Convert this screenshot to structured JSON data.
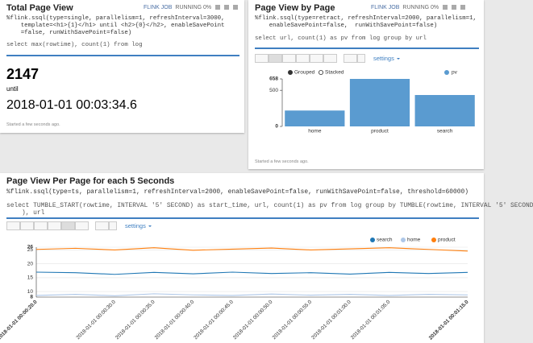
{
  "paragraphs": [
    {
      "title": "Total Page View",
      "job": "FLINK JOB",
      "status": "RUNNING 0%",
      "code": [
        "%flink.ssql(type=single, parallelism=1, refreshInterval=3000,",
        "    template=<h1>{1}</h1> until <h2>{0}</h2>, enableSavePoint",
        "    =false, runWithSavePoint=false)"
      ],
      "sql": [
        "select max(rowtime), count(1) from log"
      ],
      "result": {
        "value": "2147",
        "label": "until",
        "time": "2018-01-01 00:03:34.6"
      },
      "footer": "Started a few seconds ago."
    },
    {
      "title": "Page View by Page",
      "job": "FLINK JOB",
      "status": "RUNNING 0%",
      "code": [
        "%flink.ssql(type=retract, refreshInterval=2000, parallelism=1,",
        "    enableSavePoint=false,  runWithSavePoint=false)"
      ],
      "sql": [
        "select url, count(1) as pv from log group by url"
      ],
      "settings": "settings",
      "chart_data": {
        "type": "bar",
        "modes": [
          "Grouped",
          "Stacked"
        ],
        "categories": [
          "home",
          "product",
          "search"
        ],
        "series": [
          {
            "name": "pv",
            "color": "#5a9bd0",
            "values": [
              220,
              658,
              435
            ]
          }
        ],
        "ylim": [
          0,
          658
        ],
        "yticks": [
          0,
          500,
          658
        ],
        "grid": false
      },
      "footer": "Started a few seconds ago."
    },
    {
      "title": "Page View Per Page for each 5 Seconds",
      "code": [
        "%flink.ssql(type=ts, parallelism=1, refreshInterval=2000, enableSavePoint=false, runWithSavePoint=false, threshold=60000)"
      ],
      "sql": [
        "select TUMBLE_START(rowtime, INTERVAL '5' SECOND) as start_time, url, count(1) as pv from log group by TUMBLE(rowtime, INTERVAL '5' SECOND",
        "    ), url"
      ],
      "settings": "settings",
      "chart_data": {
        "type": "line",
        "x": [
          "2018-01-01 00:00:20.0",
          null,
          "2018-01-01 00:00:30.0",
          "2018-01-01 00:00:35.0",
          "2018-01-01 00:00:40.0",
          "2018-01-01 00:00:45.0",
          "2018-01-01 00:00:50.0",
          "2018-01-01 00:00:55.0",
          "2018-01-01 00:01:00.0",
          "2018-01-01 00:01:05.0",
          null,
          "2018-01-01 00:01:15.0"
        ],
        "series": [
          {
            "name": "search",
            "color": "#1f77b4",
            "values": [
              17.0,
              16.8,
              16.2,
              16.9,
              16.4,
              17.0,
              16.5,
              16.8,
              16.3,
              16.9,
              16.5,
              16.9
            ]
          },
          {
            "name": "home",
            "color": "#aec7e8",
            "values": [
              8.6,
              9.0,
              8.5,
              9.2,
              8.8,
              8.6,
              9.1,
              8.7,
              9.0,
              8.6,
              9.0,
              8.8
            ]
          },
          {
            "name": "product",
            "color": "#ff7f0e",
            "values": [
              25.2,
              25.6,
              25.0,
              25.8,
              24.9,
              25.3,
              25.7,
              25.0,
              25.4,
              25.8,
              25.2,
              24.6
            ]
          }
        ],
        "ylim": [
          8,
          26
        ],
        "yticks": [
          8,
          10,
          15,
          20,
          25,
          26
        ],
        "grid": true
      }
    }
  ]
}
